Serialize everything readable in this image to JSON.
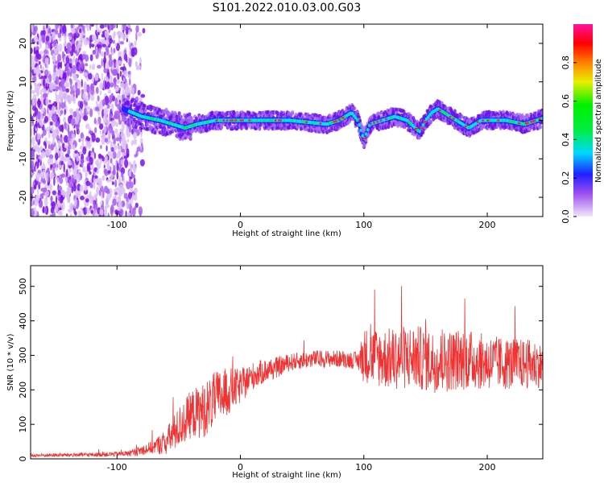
{
  "title": "S101.2022.010.03.00.G03",
  "chart_data": [
    {
      "type": "heatmap",
      "title": "S101.2022.010.03.00.G03",
      "xlabel": "Height of straight line (km)",
      "ylabel": "Frequency (Hz)",
      "xlim": [
        -170,
        245
      ],
      "ylim": [
        -25,
        25
      ],
      "xticks": [
        "-100",
        "0",
        "100",
        "200"
      ],
      "yticks": [
        "-20",
        "-10",
        "0",
        "10",
        "20"
      ],
      "colorbar": {
        "label": "Normalized spectral amplitude",
        "range": [
          0.0,
          1.0
        ],
        "ticks": [
          "0.0",
          "0.2",
          "0.4",
          "0.6",
          "0.8"
        ],
        "colors": [
          "#f0d8f8",
          "#7a00e8",
          "#1a1aff",
          "#00e8ff",
          "#00f000",
          "#f0f000",
          "#ff7000",
          "#ff0000",
          "#ff10a0"
        ]
      },
      "ridge_frequency": {
        "x": [
          -95,
          -80,
          -65,
          -55,
          -45,
          -35,
          -20,
          0,
          40,
          70,
          80,
          90,
          95,
          100,
          105,
          115,
          125,
          135,
          145,
          150,
          155,
          160,
          165,
          175,
          185,
          195,
          215,
          230,
          245
        ],
        "y": [
          3,
          1,
          0,
          -1,
          -2,
          -1,
          0,
          0,
          0,
          -1,
          0,
          2,
          0,
          -5,
          -1,
          0,
          1,
          0,
          -3,
          0,
          2,
          3,
          2,
          0,
          -2,
          0,
          0,
          -1,
          0.5
        ]
      },
      "grid": false
    },
    {
      "type": "line",
      "xlabel": "Height of straight line (km)",
      "ylabel": "SNR (10 * v/v)",
      "xlim": [
        -170,
        245
      ],
      "ylim": [
        0,
        560
      ],
      "xticks": [
        "-100",
        "0",
        "100",
        "200"
      ],
      "yticks": [
        "0",
        "100",
        "200",
        "300",
        "400",
        "500"
      ],
      "color": "#ee3333",
      "series": [
        {
          "x": [
            -170,
            -120,
            -90,
            -80,
            -70,
            -60,
            -50,
            -40,
            -30,
            -20,
            -10,
            0,
            10,
            20,
            30,
            40,
            60,
            80,
            95,
            100,
            120,
            140,
            160,
            180,
            200,
            220,
            240,
            245
          ],
          "values": [
            10,
            12,
            15,
            25,
            35,
            50,
            90,
            130,
            140,
            175,
            195,
            210,
            240,
            255,
            265,
            280,
            290,
            290,
            285,
            300,
            290,
            295,
            280,
            290,
            280,
            275,
            275,
            270
          ],
          "spread": [
            5,
            6,
            8,
            15,
            20,
            40,
            60,
            70,
            80,
            80,
            70,
            50,
            40,
            35,
            30,
            25,
            25,
            25,
            25,
            80,
            90,
            95,
            90,
            90,
            80,
            75,
            70,
            60
          ]
        }
      ],
      "grid": false
    }
  ]
}
